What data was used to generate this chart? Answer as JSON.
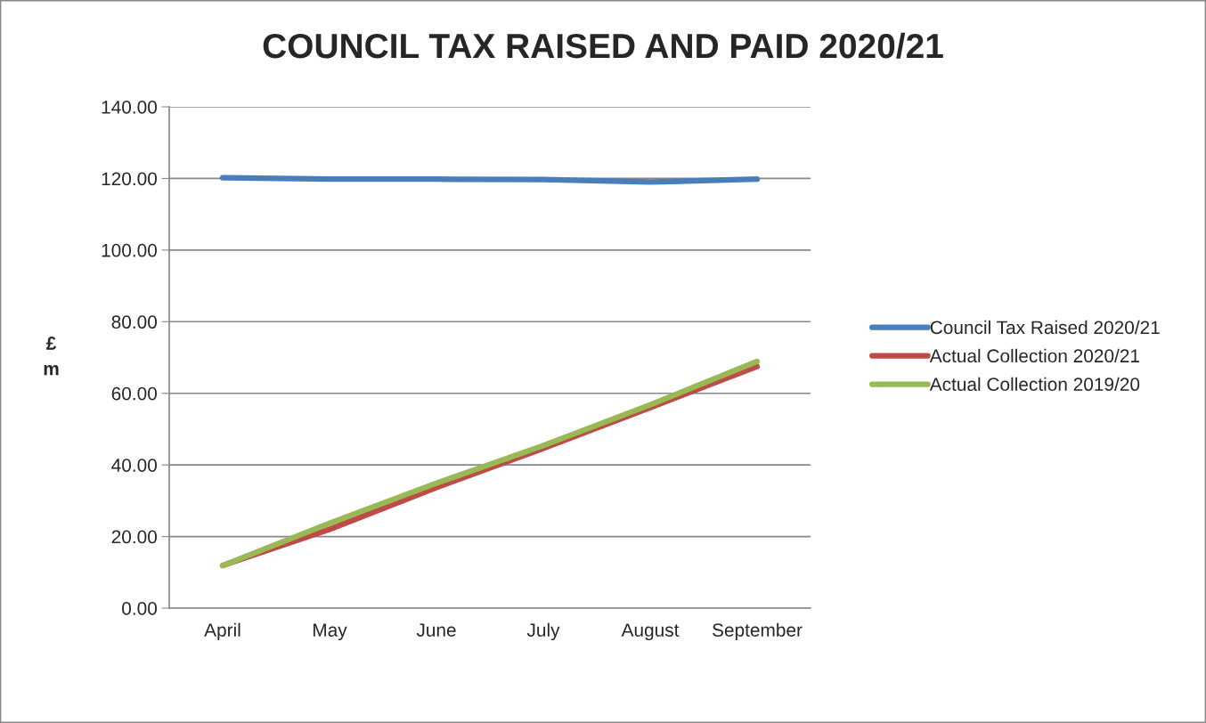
{
  "chart_data": {
    "type": "line",
    "title": "COUNCIL TAX RAISED AND PAID 2020/21",
    "ylabel": "£\nm",
    "categories": [
      "April",
      "May",
      "June",
      "July",
      "August",
      "September"
    ],
    "series": [
      {
        "name": "Council Tax Raised 2020/21",
        "color": "#4a7ebb",
        "values": [
          120.2,
          119.8,
          119.8,
          119.7,
          119.0,
          119.8
        ]
      },
      {
        "name": "Actual Collection 2020/21",
        "color": "#be4b48",
        "values": [
          11.9,
          22.0,
          33.7,
          44.6,
          56.0,
          67.5
        ]
      },
      {
        "name": "Actual Collection 2019/20",
        "color": "#98b954",
        "values": [
          11.9,
          23.7,
          34.9,
          45.4,
          56.8,
          68.9
        ]
      }
    ],
    "ylim": [
      0,
      140
    ],
    "yticks": [
      {
        "value": 0,
        "label": "0.00"
      },
      {
        "value": 20,
        "label": "20.00"
      },
      {
        "value": 40,
        "label": "40.00"
      },
      {
        "value": 60,
        "label": "60.00"
      },
      {
        "value": 80,
        "label": "80.00"
      },
      {
        "value": 100,
        "label": "100.00"
      },
      {
        "value": 120,
        "label": "120.00"
      },
      {
        "value": 140,
        "label": "140.00"
      }
    ],
    "grid": "y",
    "legend": "right",
    "marker": "none",
    "line_style": "solid"
  }
}
